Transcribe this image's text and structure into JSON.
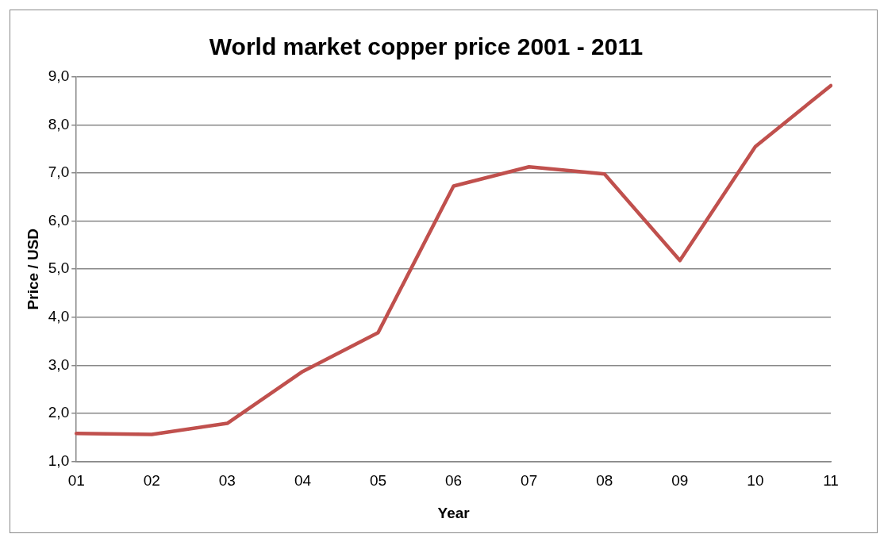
{
  "chart_data": {
    "type": "line",
    "title": "World market copper price 2001 - 2011",
    "xlabel": "Year",
    "ylabel": "Price / USD",
    "categories": [
      "01",
      "02",
      "03",
      "04",
      "05",
      "06",
      "07",
      "08",
      "09",
      "10",
      "11"
    ],
    "series": [
      {
        "color": "#c0504d",
        "values": [
          1.58,
          1.56,
          1.79,
          2.87,
          3.68,
          6.73,
          7.13,
          6.98,
          5.18,
          7.55,
          8.82
        ]
      }
    ],
    "ylim": [
      1,
      9
    ],
    "yticks": [
      {
        "value": 1,
        "label": "1,0"
      },
      {
        "value": 2,
        "label": "2,0"
      },
      {
        "value": 3,
        "label": "3,0"
      },
      {
        "value": 4,
        "label": "4,0"
      },
      {
        "value": 5,
        "label": "5,0"
      },
      {
        "value": 6,
        "label": "6,0"
      },
      {
        "value": 7,
        "label": "7,0"
      },
      {
        "value": 8,
        "label": "8,0"
      },
      {
        "value": 9,
        "label": "9,0"
      }
    ],
    "grid": "y",
    "legend": false,
    "marker": "none",
    "line_style": "solid"
  }
}
